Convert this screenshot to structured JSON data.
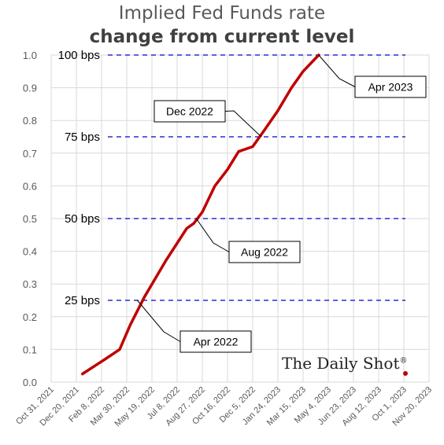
{
  "title": "Implied Fed Funds rate",
  "subtitle": "change from current level",
  "watermark": "The Daily Shot",
  "watermark_mark": "®",
  "colors": {
    "line": "#C00000",
    "ref": "#0000CC",
    "grid": "#D9D9D9",
    "axis_text": "#595959"
  },
  "chart_data": {
    "type": "line",
    "title": "Implied Fed Funds rate",
    "subtitle": "change from current level",
    "grid": true,
    "ylim": [
      0,
      1.0
    ],
    "y_ticks": [
      "0.0",
      "0.1",
      "0.2",
      "0.3",
      "0.4",
      "0.5",
      "0.6",
      "0.7",
      "0.8",
      "0.9",
      "1.0"
    ],
    "x_ticks": [
      "Oct 31, 2021",
      "Dec 20, 2021",
      "Feb 8, 2022",
      "Mar 30, 2022",
      "May 19, 2022",
      "Jul 8, 2022",
      "Aug 27, 2022",
      "Oct 16, 2022",
      "Dec 5, 2022",
      "Jan 24, 2023",
      "Mar 15, 2023",
      "May 4, 2023",
      "Jun 23, 2023",
      "Aug 12, 2023",
      "Oct 1, 2023",
      "Nov 20, 2023"
    ],
    "series": [
      {
        "x": [
          "2022-01-01",
          "2022-02-15",
          "2022-03-16",
          "2022-04-06",
          "2022-05-04",
          "2022-06-15",
          "2022-07-27",
          "2022-08-10",
          "2022-08-27",
          "2022-09-21",
          "2022-10-16",
          "2022-11-07",
          "2022-12-05",
          "2022-12-28",
          "2023-01-24",
          "2023-02-20",
          "2023-03-15",
          "2023-04-15"
        ],
        "values": [
          0.025,
          0.07,
          0.1,
          0.175,
          0.26,
          0.37,
          0.47,
          0.485,
          0.52,
          0.6,
          0.65,
          0.705,
          0.72,
          0.77,
          0.83,
          0.9,
          0.95,
          1.0
        ]
      }
    ],
    "reference_lines": [
      {
        "label": "25 bps",
        "y": 0.25
      },
      {
        "label": "50 bps",
        "y": 0.5
      },
      {
        "label": "75 bps",
        "y": 0.75
      },
      {
        "label": "100 bps",
        "y": 1.0
      }
    ],
    "annotations": [
      {
        "label": "Apr 2022",
        "x": "2022-04-20",
        "y": 0.25
      },
      {
        "label": "Aug 2022",
        "x": "2022-08-15",
        "y": 0.5
      },
      {
        "label": "Dec 2022",
        "x": "2022-12-22",
        "y": 0.75
      },
      {
        "label": "Apr 2023",
        "x": "2023-04-15",
        "y": 1.0
      }
    ]
  }
}
